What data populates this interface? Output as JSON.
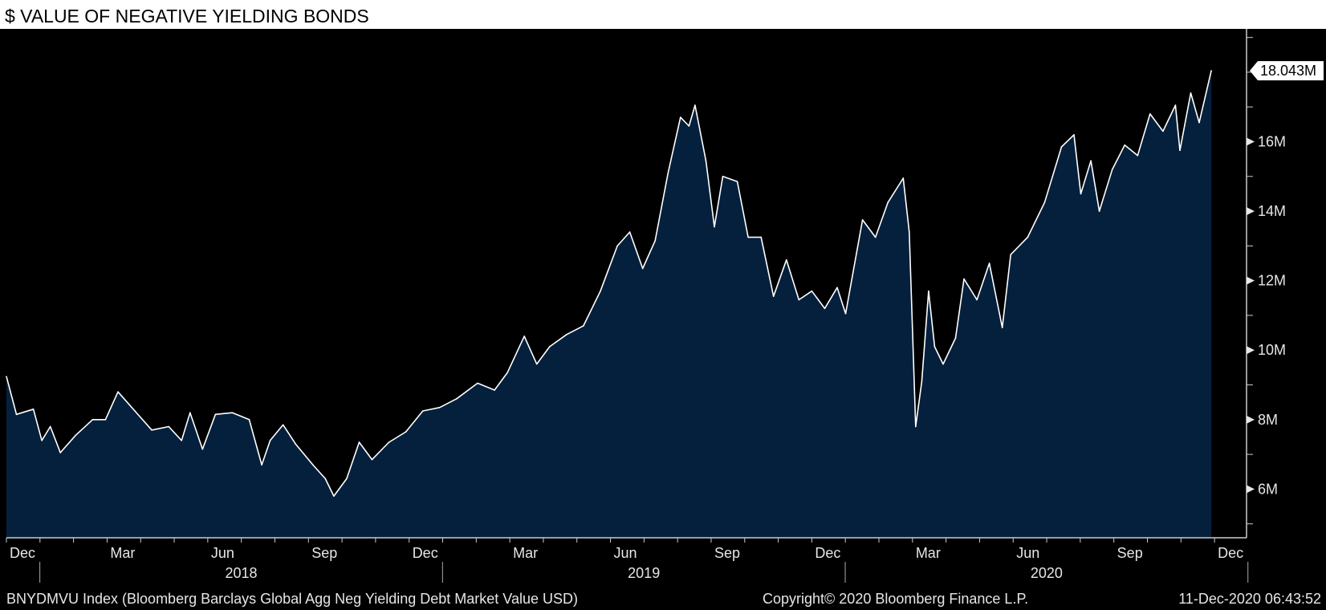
{
  "chart_data": {
    "type": "area",
    "title": "$ VALUE OF NEGATIVE YIELDING BONDS",
    "xlabel": "",
    "ylabel": "",
    "x_units": "decimal year",
    "xlim": [
      2017.917,
      2020.95
    ],
    "ylim": [
      4.6,
      19.2
    ],
    "y_ticks": [
      6,
      8,
      10,
      12,
      14,
      16
    ],
    "y_tick_labels": [
      "6M",
      "8M",
      "10M",
      "12M",
      "14M",
      "16M"
    ],
    "last_value_label": "18.043M",
    "x_month_labels": [
      {
        "x": 2017.917,
        "label": "Dec"
      },
      {
        "x": 2018.167,
        "label": "Mar"
      },
      {
        "x": 2018.417,
        "label": "Jun"
      },
      {
        "x": 2018.667,
        "label": "Sep"
      },
      {
        "x": 2018.917,
        "label": "Dec"
      },
      {
        "x": 2019.167,
        "label": "Mar"
      },
      {
        "x": 2019.417,
        "label": "Jun"
      },
      {
        "x": 2019.667,
        "label": "Sep"
      },
      {
        "x": 2019.917,
        "label": "Dec"
      },
      {
        "x": 2020.167,
        "label": "Mar"
      },
      {
        "x": 2020.417,
        "label": "Jun"
      },
      {
        "x": 2020.667,
        "label": "Sep"
      },
      {
        "x": 2020.917,
        "label": "Dec"
      }
    ],
    "x_year_labels": [
      {
        "x": 2018.5,
        "label": "2018"
      },
      {
        "x": 2019.5,
        "label": "2019"
      },
      {
        "x": 2020.5,
        "label": "2020"
      }
    ],
    "grid": false,
    "legend": "none",
    "series": [
      {
        "name": "BNYDMVU Index",
        "x": [
          2017.917,
          2017.942,
          2017.984,
          2018.005,
          2018.026,
          2018.051,
          2018.089,
          2018.131,
          2018.163,
          2018.194,
          2018.236,
          2018.278,
          2018.32,
          2018.352,
          2018.373,
          2018.404,
          2018.436,
          2018.478,
          2018.52,
          2018.551,
          2018.572,
          2018.604,
          2018.635,
          2018.678,
          2018.709,
          2018.73,
          2018.762,
          2018.793,
          2018.825,
          2018.867,
          2018.909,
          2018.951,
          2018.993,
          2019.035,
          2019.087,
          2019.129,
          2019.161,
          2019.203,
          2019.234,
          2019.266,
          2019.308,
          2019.35,
          2019.392,
          2019.434,
          2019.465,
          2019.497,
          2019.528,
          2019.56,
          2019.591,
          2019.612,
          2019.627,
          2019.654,
          2019.675,
          2019.696,
          2019.732,
          2019.759,
          2019.791,
          2019.822,
          2019.854,
          2019.885,
          2019.917,
          2019.949,
          2019.98,
          2020.001,
          2020.043,
          2020.075,
          2020.106,
          2020.144,
          2020.159,
          2020.175,
          2020.19,
          2020.207,
          2020.222,
          2020.243,
          2020.274,
          2020.295,
          2020.327,
          2020.358,
          2020.39,
          2020.411,
          2020.453,
          2020.495,
          2020.537,
          2020.568,
          2020.585,
          2020.61,
          2020.631,
          2020.663,
          2020.694,
          2020.726,
          2020.757,
          2020.789,
          2020.82,
          2020.831,
          2020.858,
          2020.879,
          2020.894,
          2020.909
        ],
        "values": [
          9.24,
          8.15,
          8.3,
          7.4,
          7.8,
          7.05,
          7.55,
          8.0,
          8.0,
          8.8,
          8.25,
          7.7,
          7.8,
          7.4,
          8.2,
          7.15,
          8.15,
          8.2,
          8.0,
          6.7,
          7.4,
          7.85,
          7.3,
          6.7,
          6.3,
          5.8,
          6.3,
          7.35,
          6.85,
          7.35,
          7.65,
          8.25,
          8.35,
          8.6,
          9.05,
          8.85,
          9.35,
          10.4,
          9.6,
          10.1,
          10.45,
          10.7,
          11.7,
          13.0,
          13.4,
          12.35,
          13.15,
          15.1,
          16.7,
          16.45,
          17.05,
          15.45,
          13.55,
          15.0,
          14.85,
          13.25,
          13.25,
          11.55,
          12.6,
          11.45,
          11.7,
          11.2,
          11.8,
          11.05,
          13.75,
          13.25,
          14.25,
          14.95,
          13.4,
          7.8,
          9.1,
          11.7,
          10.1,
          9.6,
          10.35,
          12.05,
          11.45,
          12.5,
          10.65,
          12.75,
          13.25,
          14.25,
          15.85,
          16.2,
          14.5,
          15.45,
          14.0,
          15.2,
          15.9,
          15.6,
          16.8,
          16.3,
          17.05,
          15.75,
          17.4,
          16.55,
          17.3,
          18.043
        ]
      }
    ],
    "footer": {
      "source": "BNYDMVU Index (Bloomberg Barclays Global Agg Neg Yielding Debt Market Value USD)",
      "copyright": "Copyright© 2020 Bloomberg Finance L.P.",
      "timestamp": "11-Dec-2020 06:43:52"
    },
    "colors": {
      "background": "#000000",
      "fill": "#05203d",
      "line": "#ffffff",
      "text": "#e6e6e6"
    }
  }
}
